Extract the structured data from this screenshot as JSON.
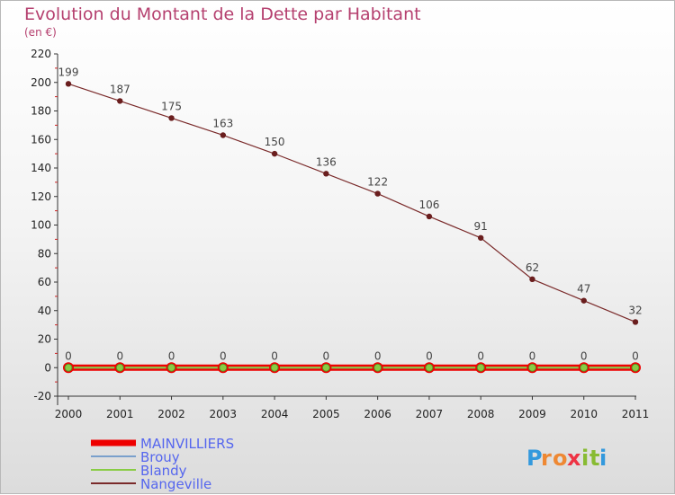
{
  "chart_data": {
    "type": "line",
    "title": "Evolution du Montant de la Dette par Habitant",
    "subtitle": "(en €)",
    "xlabel": "",
    "ylabel": "",
    "x": [
      "2000",
      "2001",
      "2002",
      "2003",
      "2004",
      "2005",
      "2006",
      "2007",
      "2008",
      "2009",
      "2010",
      "2011"
    ],
    "ylim": [
      -20,
      220
    ],
    "yticks": [
      -20,
      0,
      20,
      40,
      60,
      80,
      100,
      120,
      140,
      160,
      180,
      200,
      220
    ],
    "series": [
      {
        "name": "MAINVILLIERS",
        "color": "#ee0000",
        "values": [
          0,
          0,
          0,
          0,
          0,
          0,
          0,
          0,
          0,
          0,
          0,
          0
        ],
        "show_labels": false
      },
      {
        "name": "Brouy",
        "color": "#7aa0cc",
        "values": [
          0,
          0,
          0,
          0,
          0,
          0,
          0,
          0,
          0,
          0,
          0,
          0
        ],
        "show_labels": false
      },
      {
        "name": "Blandy",
        "color": "#88cc44",
        "values": [
          0,
          0,
          0,
          0,
          0,
          0,
          0,
          0,
          0,
          0,
          0,
          0
        ],
        "show_labels": true
      },
      {
        "name": "Nangeville",
        "color": "#7a2a2a",
        "values": [
          199,
          187,
          175,
          163,
          150,
          136,
          122,
          106,
          91,
          62,
          47,
          32
        ],
        "show_labels": true
      }
    ]
  },
  "brand": {
    "letters": [
      "P",
      "r",
      "o",
      "x",
      "i",
      "t",
      "i"
    ],
    "colors": [
      "#3399dd",
      "#ee8833",
      "#ee8833",
      "#ee3344",
      "#88bb33",
      "#88bb33",
      "#3399dd"
    ]
  }
}
